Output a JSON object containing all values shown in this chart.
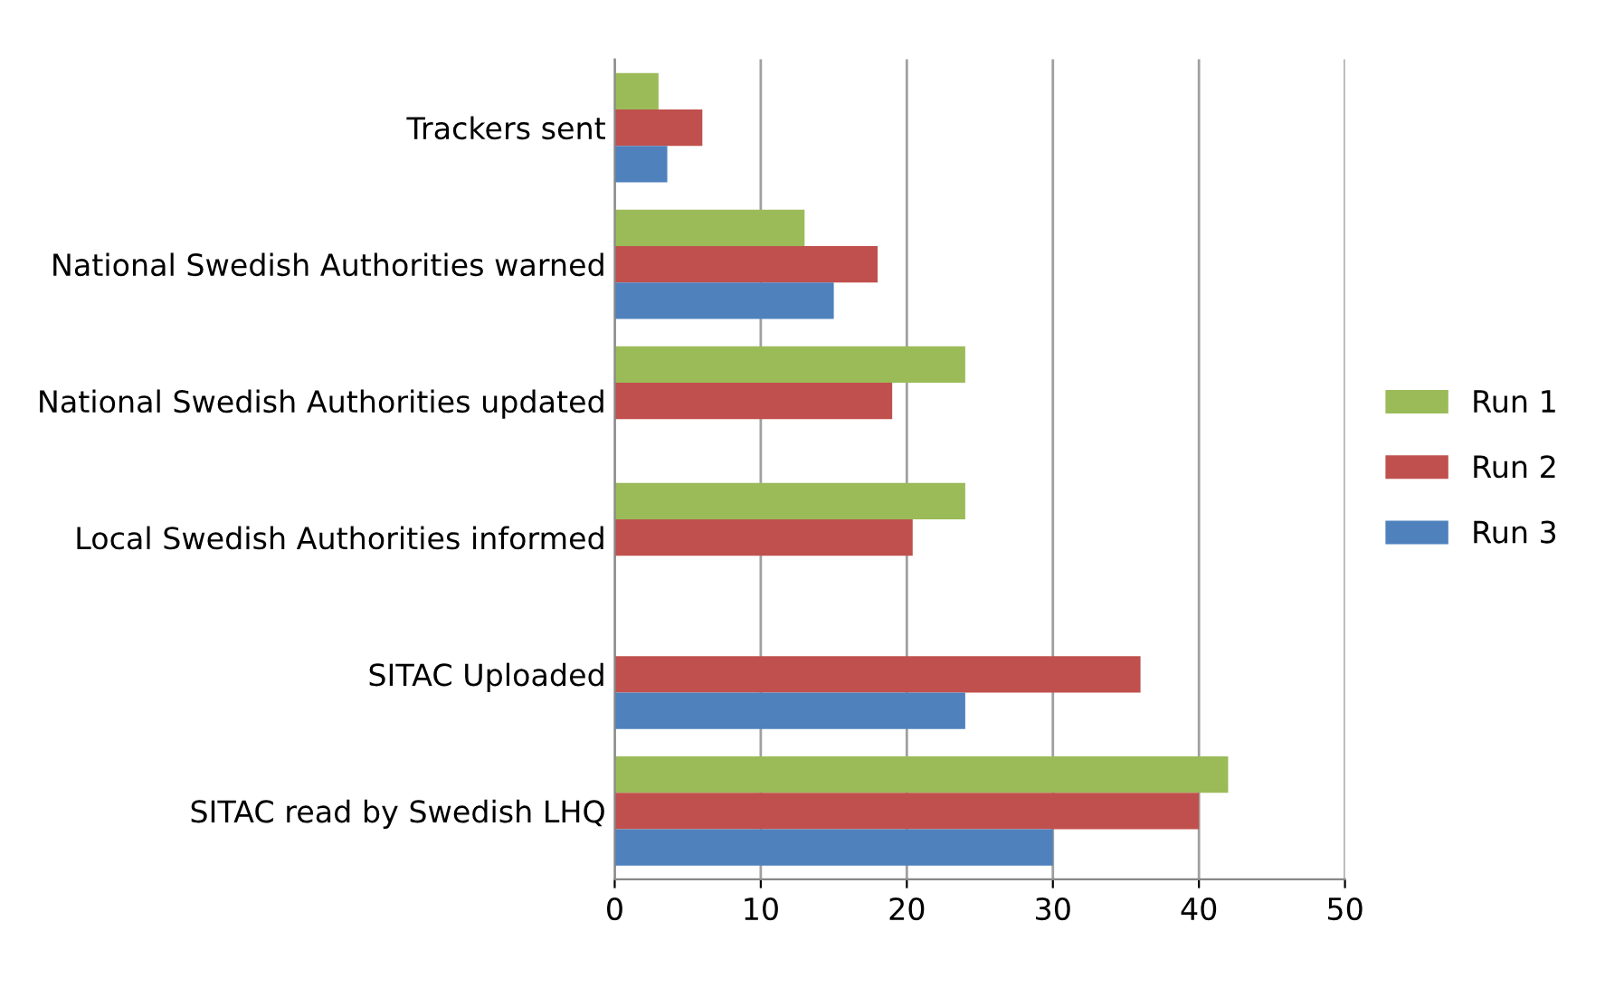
{
  "chart_data": {
    "type": "bar",
    "orientation": "horizontal",
    "categories": [
      "Trackers sent",
      "National Swedish Authorities warned",
      "National Swedish Authorities updated",
      "Local Swedish Authorities informed",
      "SITAC Uploaded",
      "SITAC read by Swedish LHQ"
    ],
    "series": [
      {
        "name": "Run 1",
        "color": "#9bbb59",
        "values": [
          3,
          13,
          24,
          24,
          null,
          42
        ]
      },
      {
        "name": "Run 2",
        "color": "#c0504d",
        "values": [
          6,
          18,
          19,
          20.4,
          36,
          40
        ]
      },
      {
        "name": "Run 3",
        "color": "#4f81bd",
        "values": [
          3.6,
          15,
          null,
          null,
          24,
          30
        ]
      }
    ],
    "xlim": [
      0,
      50
    ],
    "xticks": [
      0,
      10,
      20,
      30,
      40,
      50
    ],
    "grid": "x",
    "legend": "right"
  }
}
